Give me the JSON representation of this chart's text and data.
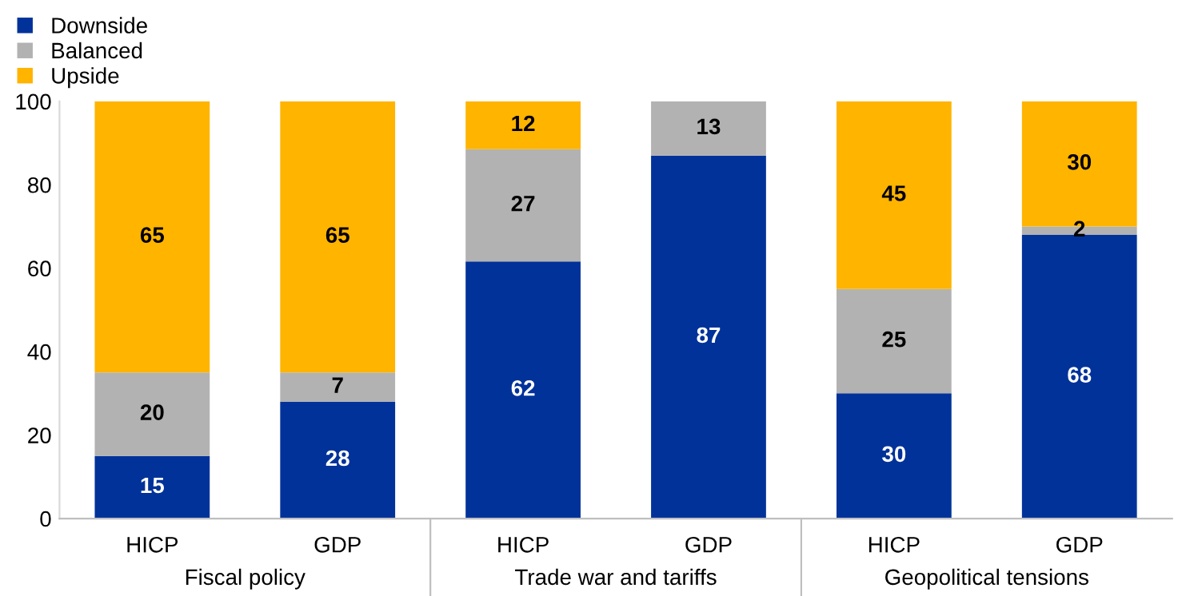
{
  "chart_data": {
    "type": "bar",
    "stacked": true,
    "categories": [
      "HICP",
      "GDP",
      "HICP",
      "GDP",
      "HICP",
      "GDP"
    ],
    "series": [
      {
        "name": "Downside",
        "color": "#003299",
        "values": [
          15,
          28,
          61.6,
          87,
          30,
          68
        ],
        "value_labels": [
          "15",
          "28",
          "62",
          "87",
          "30",
          "68"
        ]
      },
      {
        "name": "Balanced",
        "color": "#b2b2b2",
        "values": [
          20,
          7,
          26.9,
          13,
          25,
          2
        ],
        "value_labels": [
          "20",
          "7",
          "27",
          "13",
          "25",
          "2"
        ]
      },
      {
        "name": "Upside",
        "color": "#ffb400",
        "values": [
          65,
          65,
          11.5,
          0,
          45,
          30
        ],
        "value_labels": [
          "65",
          "65",
          "12",
          null,
          "45",
          "30"
        ]
      }
    ],
    "annotations": [
      "Fiscal policy",
      "Trade war and tariffs",
      "Geopolitical tensions"
    ],
    "ylim": [
      0,
      100
    ],
    "yticks": [
      0,
      20,
      40,
      60,
      80,
      100
    ],
    "grid": false,
    "legend": "top left"
  }
}
